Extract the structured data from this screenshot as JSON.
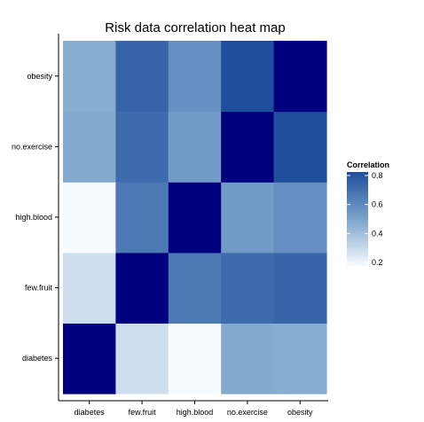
{
  "chart_data": {
    "type": "heatmap",
    "title": "Risk data correlation heat map",
    "x_categories": [
      "diabetes",
      "few.fruit",
      "high.blood",
      "no.exercise",
      "obesity"
    ],
    "y_categories": [
      "diabetes",
      "few.fruit",
      "high.blood",
      "no.exercise",
      "obesity"
    ],
    "matrix": [
      [
        1.0,
        0.3,
        0.2,
        0.48,
        0.47
      ],
      [
        0.3,
        1.0,
        0.65,
        0.7,
        0.72
      ],
      [
        0.2,
        0.65,
        1.0,
        0.53,
        0.57
      ],
      [
        0.48,
        0.7,
        0.53,
        1.0,
        0.83
      ],
      [
        0.47,
        0.72,
        0.57,
        0.83,
        1.0
      ]
    ],
    "legend": {
      "title": "Correlation",
      "ticks": [
        "0.8",
        "0.6",
        "0.4",
        "0.2"
      ],
      "range": [
        0.2,
        0.8
      ],
      "placement": "right"
    },
    "colors": {
      "low": "#f7fbff",
      "high": "#1f4e9c",
      "max": "#00007f"
    }
  }
}
